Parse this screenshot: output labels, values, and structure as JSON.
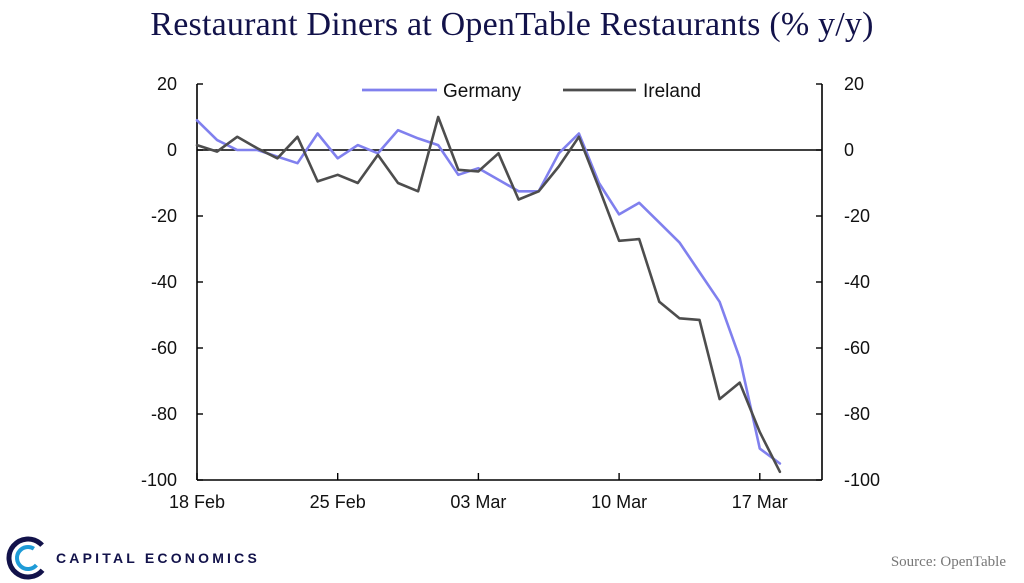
{
  "chart_data": {
    "type": "line",
    "title": "Restaurant Diners at OpenTable Restaurants (% y/y)",
    "xlabel": "",
    "ylabel": "",
    "ylim": [
      -100,
      20
    ],
    "yticks": [
      "20",
      "0",
      "-20",
      "-40",
      "-60",
      "-80",
      "-100"
    ],
    "yticks_values": [
      20,
      0,
      -20,
      -40,
      -60,
      -80,
      -100
    ],
    "right_axis": true,
    "legend_position": "top-center",
    "x_tick_labels": [
      {
        "label": "18 Feb",
        "index": 0
      },
      {
        "label": "25 Feb",
        "index": 7
      },
      {
        "label": "03 Mar",
        "index": 14
      },
      {
        "label": "10 Mar",
        "index": 21
      },
      {
        "label": "17 Mar",
        "index": 28
      }
    ],
    "x": [
      "18 Feb",
      "19 Feb",
      "20 Feb",
      "21 Feb",
      "22 Feb",
      "23 Feb",
      "24 Feb",
      "25 Feb",
      "26 Feb",
      "27 Feb",
      "28 Feb",
      "29 Feb",
      "01 Mar",
      "02 Mar",
      "03 Mar",
      "04 Mar",
      "05 Mar",
      "06 Mar",
      "07 Mar",
      "08 Mar",
      "09 Mar",
      "10 Mar",
      "11 Mar",
      "12 Mar",
      "13 Mar",
      "14 Mar",
      "15 Mar",
      "16 Mar",
      "17 Mar",
      "18 Mar"
    ],
    "series": [
      {
        "name": "Germany",
        "color": "#8080ee",
        "values": [
          9,
          3,
          0,
          0,
          -2,
          -4,
          5,
          -2.5,
          1.5,
          -1,
          6,
          3.5,
          1.5,
          -7.5,
          -5.5,
          -9,
          -12.5,
          -12.5,
          -1,
          5,
          -10,
          -19.5,
          -16,
          -22,
          -28,
          -37,
          -46,
          -63,
          -90.5,
          -95
        ]
      },
      {
        "name": "Ireland",
        "color": "#4d4d4d",
        "values": [
          1.5,
          -0.5,
          4,
          0.5,
          -2.5,
          4,
          -9.5,
          -7.5,
          -10,
          -1.5,
          -10,
          -12.5,
          10,
          -6,
          -6.5,
          -1,
          -15,
          -12.5,
          -5,
          4,
          -11.5,
          -27.5,
          -27,
          -46,
          -51,
          -51.5,
          -75.5,
          -70.5,
          -85.5,
          -97.5
        ]
      }
    ]
  },
  "branding": {
    "name": "CAPITAL ECONOMICS",
    "logo_primary_color": "#12124a",
    "logo_accent_color": "#1e9bd7"
  },
  "source": "Source: OpenTable"
}
